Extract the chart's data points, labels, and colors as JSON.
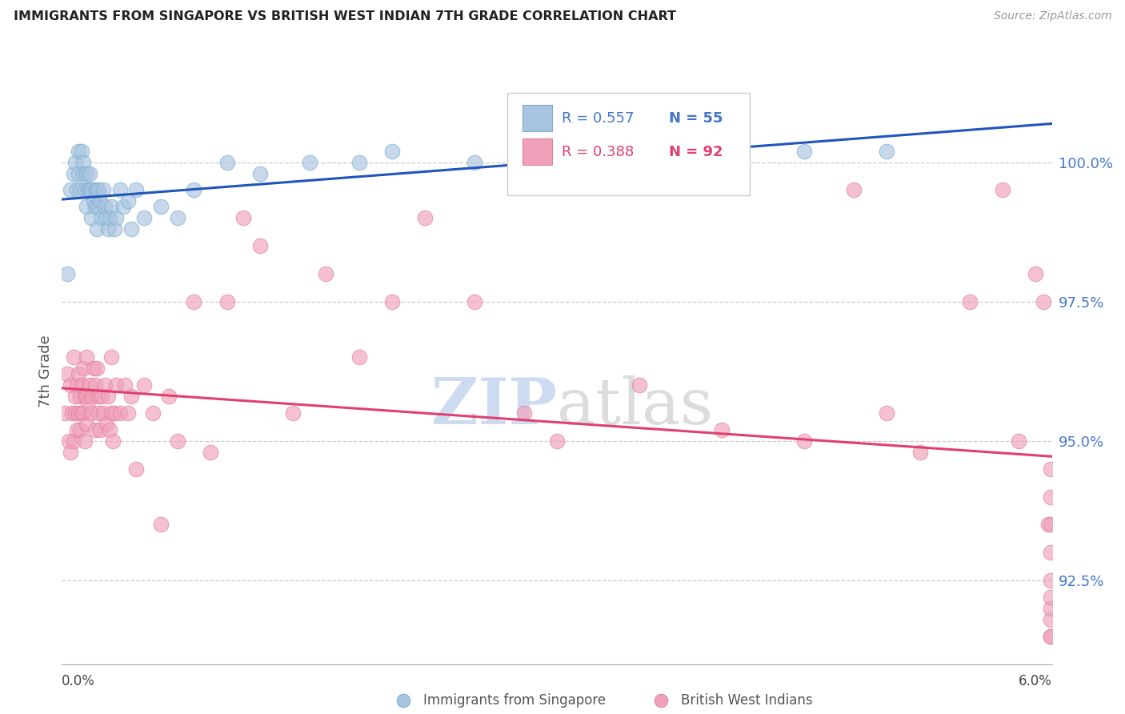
{
  "title": "IMMIGRANTS FROM SINGAPORE VS BRITISH WEST INDIAN 7TH GRADE CORRELATION CHART",
  "source": "Source: ZipAtlas.com",
  "ylabel": "7th Grade",
  "xmin": 0.0,
  "xmax": 6.0,
  "ymin": 91.0,
  "ymax": 101.5,
  "yticks": [
    92.5,
    95.0,
    97.5,
    100.0
  ],
  "ytick_labels": [
    "92.5%",
    "95.0%",
    "97.5%",
    "100.0%"
  ],
  "legend_r1": "R = 0.557",
  "legend_n1": "N = 55",
  "legend_r2": "R = 0.388",
  "legend_n2": "N = 92",
  "legend_label1": "Immigrants from Singapore",
  "legend_label2": "British West Indians",
  "blue_color": "#a8c4e0",
  "blue_edge_color": "#7aaed0",
  "pink_color": "#f0a0b8",
  "pink_edge_color": "#e080a0",
  "blue_line_color": "#2255bb",
  "pink_line_color": "#e04070",
  "watermark_zip": "ZIP",
  "watermark_atlas": "atlas",
  "watermark_color_zip": "#c8d8f0",
  "watermark_color_atlas": "#c0c0c0",
  "singapore_x": [
    0.03,
    0.05,
    0.07,
    0.08,
    0.09,
    0.1,
    0.1,
    0.11,
    0.12,
    0.13,
    0.13,
    0.14,
    0.15,
    0.15,
    0.16,
    0.17,
    0.17,
    0.18,
    0.18,
    0.19,
    0.2,
    0.2,
    0.21,
    0.21,
    0.22,
    0.22,
    0.23,
    0.24,
    0.25,
    0.26,
    0.27,
    0.28,
    0.29,
    0.3,
    0.32,
    0.33,
    0.35,
    0.37,
    0.4,
    0.42,
    0.45,
    0.5,
    0.6,
    0.7,
    0.8,
    1.0,
    1.2,
    1.5,
    1.8,
    2.0,
    2.5,
    3.0,
    3.5,
    4.5,
    5.0
  ],
  "singapore_y": [
    98.0,
    99.5,
    99.8,
    100.0,
    99.5,
    99.8,
    100.2,
    99.5,
    100.2,
    100.0,
    99.8,
    99.5,
    99.8,
    99.2,
    99.5,
    99.5,
    99.8,
    99.5,
    99.0,
    99.3,
    99.5,
    99.2,
    99.5,
    98.8,
    99.5,
    99.2,
    99.3,
    99.0,
    99.5,
    99.2,
    99.0,
    98.8,
    99.0,
    99.2,
    98.8,
    99.0,
    99.5,
    99.2,
    99.3,
    98.8,
    99.5,
    99.0,
    99.2,
    99.0,
    99.5,
    100.0,
    99.8,
    100.0,
    100.0,
    100.2,
    100.0,
    100.2,
    100.2,
    100.2,
    100.2
  ],
  "bwi_x": [
    0.02,
    0.03,
    0.04,
    0.05,
    0.05,
    0.06,
    0.07,
    0.07,
    0.08,
    0.08,
    0.09,
    0.09,
    0.1,
    0.1,
    0.11,
    0.11,
    0.12,
    0.12,
    0.13,
    0.13,
    0.14,
    0.14,
    0.15,
    0.15,
    0.15,
    0.16,
    0.17,
    0.18,
    0.18,
    0.19,
    0.2,
    0.2,
    0.21,
    0.22,
    0.22,
    0.23,
    0.24,
    0.25,
    0.26,
    0.27,
    0.28,
    0.29,
    0.3,
    0.3,
    0.31,
    0.32,
    0.33,
    0.35,
    0.38,
    0.4,
    0.42,
    0.45,
    0.5,
    0.55,
    0.6,
    0.65,
    0.7,
    0.8,
    0.9,
    1.0,
    1.1,
    1.2,
    1.4,
    1.6,
    1.8,
    2.0,
    2.2,
    2.5,
    2.8,
    3.0,
    3.5,
    4.0,
    4.5,
    4.8,
    5.0,
    5.2,
    5.5,
    5.7,
    5.8,
    5.9,
    5.95,
    5.98,
    5.99,
    5.99,
    5.99,
    5.99,
    5.99,
    5.99,
    5.99,
    5.99,
    5.99,
    5.99
  ],
  "bwi_y": [
    95.5,
    96.2,
    95.0,
    96.0,
    94.8,
    95.5,
    96.5,
    95.0,
    95.5,
    95.8,
    95.2,
    96.0,
    96.2,
    95.5,
    95.8,
    95.2,
    95.5,
    96.0,
    96.3,
    95.5,
    95.8,
    95.0,
    95.8,
    95.3,
    96.5,
    95.7,
    96.0,
    95.5,
    95.8,
    96.3,
    96.0,
    95.2,
    96.3,
    95.8,
    95.5,
    95.2,
    95.8,
    95.5,
    96.0,
    95.3,
    95.8,
    95.2,
    96.5,
    95.5,
    95.0,
    95.5,
    96.0,
    95.5,
    96.0,
    95.5,
    95.8,
    94.5,
    96.0,
    95.5,
    93.5,
    95.8,
    95.0,
    97.5,
    94.8,
    97.5,
    99.0,
    98.5,
    95.5,
    98.0,
    96.5,
    97.5,
    99.0,
    97.5,
    95.5,
    95.0,
    96.0,
    95.2,
    95.0,
    99.5,
    95.5,
    94.8,
    97.5,
    99.5,
    95.0,
    98.0,
    97.5,
    93.5,
    91.5,
    91.5,
    91.8,
    92.0,
    92.2,
    92.5,
    93.0,
    93.5,
    94.0,
    94.5
  ]
}
